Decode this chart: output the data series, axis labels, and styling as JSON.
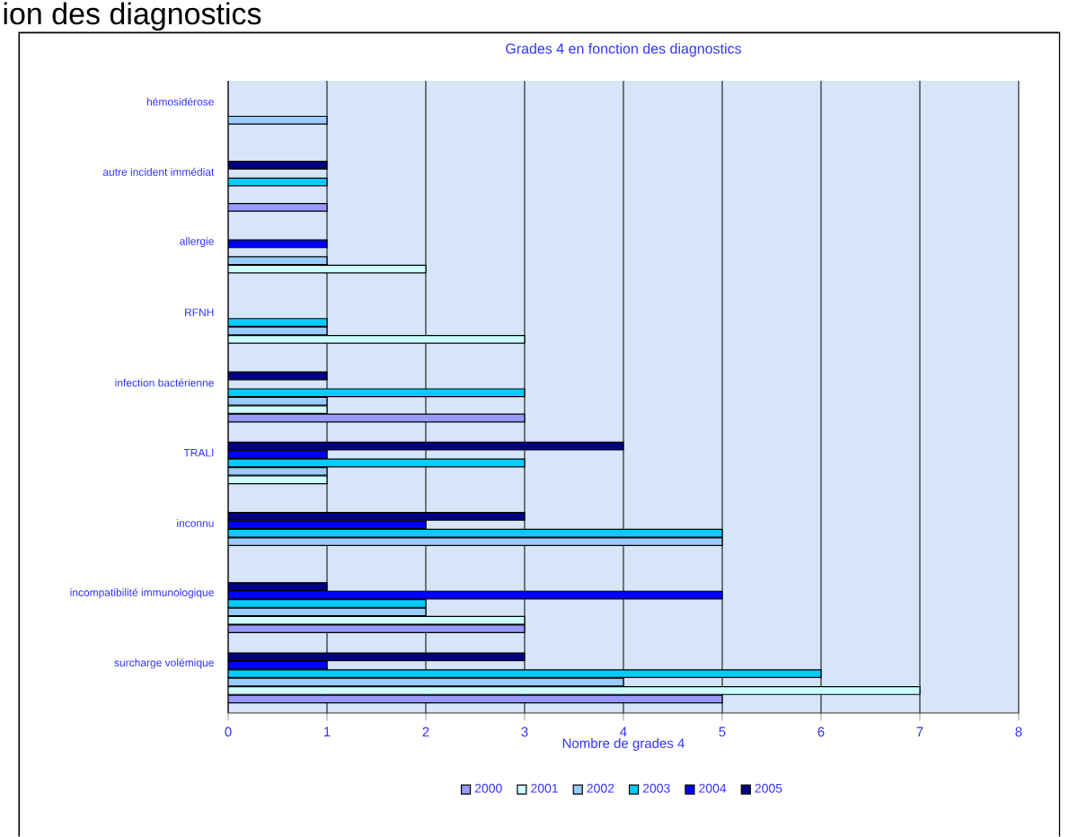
{
  "chart_data": {
    "type": "bar",
    "orientation": "horizontal",
    "title": "Grades 4 en fonction des diagnostics",
    "xlabel": "Nombre de grades 4",
    "annotations": [
      "ion des diagnostics"
    ],
    "categories": [
      "hémosidérose",
      "autre incident immédiat",
      "allergie",
      "RFNH",
      "infection bactérienne",
      "TRALI",
      "inconnu",
      "incompatibilité immunologique",
      "surcharge volémique"
    ],
    "series": [
      {
        "name": "2000",
        "color": "#9999ff",
        "values": [
          0,
          1,
          0,
          0,
          3,
          0,
          0,
          3,
          5
        ]
      },
      {
        "name": "2001",
        "color": "#ccffff",
        "values": [
          0,
          0,
          2,
          3,
          1,
          1,
          0,
          3,
          7
        ]
      },
      {
        "name": "2002",
        "color": "#99ccff",
        "values": [
          1,
          0,
          1,
          1,
          1,
          1,
          5,
          2,
          4
        ]
      },
      {
        "name": "2003",
        "color": "#00ccff",
        "values": [
          0,
          1,
          0,
          1,
          3,
          3,
          5,
          2,
          6
        ]
      },
      {
        "name": "2004",
        "color": "#0000ff",
        "values": [
          0,
          0,
          1,
          0,
          0,
          1,
          2,
          5,
          1
        ]
      },
      {
        "name": "2005",
        "color": "#000080",
        "values": [
          0,
          1,
          0,
          0,
          1,
          4,
          3,
          1,
          3
        ]
      }
    ],
    "xlim": [
      0,
      8
    ],
    "xticks": [
      0,
      1,
      2,
      3,
      4,
      5,
      6,
      7,
      8
    ],
    "grid": "x",
    "legend": "bottom"
  }
}
